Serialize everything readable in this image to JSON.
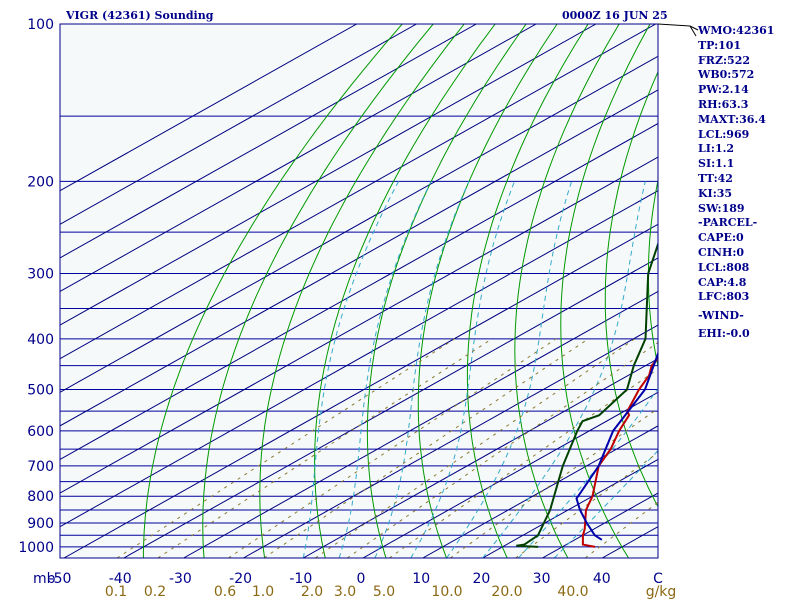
{
  "header": {
    "station": "VIGR (42361) Sounding",
    "time": "0000Z 16 JUN 25"
  },
  "indices": [
    "WMO:42361",
    "TP:101",
    "FRZ:522",
    "WB0:572",
    "PW:2.14",
    "RH:63.3",
    "MAXT:36.4",
    "LCL:969",
    "LI:1.2",
    "SI:1.1",
    "TT:42",
    "KI:35",
    "SW:189",
    "-PARCEL-",
    "CAPE:0",
    "CINH:0",
    "LCL:808",
    "CAP:4.8",
    "LFC:803",
    "-WIND-",
    "EHI:-0.0"
  ],
  "colors": {
    "temperature": "#c00000",
    "dewpoint": "#004000",
    "parcel": "#0000aa",
    "isobar": "#0000a0",
    "isotherm": "#000080",
    "dry_adiabat": "#009900",
    "moist_adiabat": "#33aacc",
    "mixing_ratio": "#8b7a30",
    "background": "#f5f9f9",
    "text": "#00008b"
  },
  "chart_data": {
    "type": "line",
    "subtype": "skew-T log-P sounding",
    "title": "VIGR (42361) Sounding",
    "valid_time": "0000Z 16 JUN 25",
    "y_axis": {
      "label": "mb",
      "scale": "log",
      "range": [
        1050,
        100
      ],
      "tick_labels": [
        "100",
        "200",
        "300",
        "400",
        "500",
        "600",
        "700",
        "800",
        "900",
        "1000"
      ]
    },
    "x_axis": {
      "label": "C",
      "range": [
        -50,
        50
      ],
      "tick_labels": [
        "-50",
        "-40",
        "-30",
        "-20",
        "-10",
        "0",
        "10",
        "20",
        "30",
        "40"
      ]
    },
    "mixing_ratio_axis": {
      "label": "g/kg",
      "tick_labels": [
        "0.1",
        "0.2",
        "0.6",
        "1.0",
        "2.0",
        "3.0",
        "5.0",
        "10.0",
        "20.0",
        "40.0"
      ]
    },
    "isobars_mb": [
      100,
      150,
      200,
      250,
      300,
      350,
      400,
      450,
      500,
      550,
      600,
      650,
      700,
      750,
      800,
      850,
      900,
      950,
      1000
    ],
    "series": [
      {
        "key": "temperature",
        "pressure_mb": [
          1000,
          990,
          950,
          925,
          850,
          800,
          700,
          650,
          600,
          560,
          550,
          500,
          470,
          450,
          400,
          300,
          250,
          200,
          150,
          105,
          100
        ],
        "temp_c": [
          35.5,
          32.8,
          30.0,
          28.5,
          23.0,
          20.0,
          12.0,
          9.0,
          5.0,
          2.0,
          0.5,
          -4.0,
          -6.5,
          -9.0,
          -13.0,
          -31.0,
          -40.0,
          -53.0,
          -67.0,
          -78.0,
          -80.0
        ]
      },
      {
        "key": "dewpoint",
        "pressure_mb": [
          1000,
          995,
          990,
          950,
          850,
          700,
          600,
          575,
          560,
          500,
          450,
          400,
          300,
          250,
          200,
          150,
          105,
          100
        ],
        "temp_c": [
          26.0,
          22.0,
          23.0,
          22.5,
          17.0,
          6.0,
          -2.0,
          -4.0,
          -3.0,
          -6.0,
          -12.0,
          -18.0,
          -37.0,
          -47.0,
          -58.0,
          -75.0,
          -90.0,
          -91.0
        ]
      },
      {
        "key": "parcel",
        "pressure_mb": [
          969,
          950,
          900,
          850,
          808,
          800,
          700,
          600,
          500,
          400,
          300,
          250,
          200,
          150,
          120
        ],
        "temp_c": [
          34.5,
          32.0,
          27.0,
          22.0,
          18.0,
          17.6,
          12.0,
          4.0,
          -3.0,
          -15.0,
          -34.0,
          -44.0,
          -55.0,
          -72.0,
          -82.0
        ]
      }
    ]
  }
}
